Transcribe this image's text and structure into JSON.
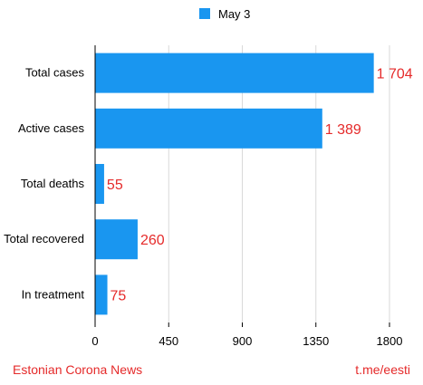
{
  "legend": {
    "label": "May 3"
  },
  "footer": {
    "left": "Estonian Corona News",
    "right": "t.me/eesti"
  },
  "colors": {
    "bar": "#1996f0",
    "value_label": "#e52a2a",
    "grid": "#d9d9d9",
    "axis": "#000000"
  },
  "chart_data": {
    "type": "bar",
    "orientation": "horizontal",
    "categories": [
      "Total cases",
      "Active cases",
      "Total deaths",
      "Total recovered",
      "In treatment"
    ],
    "series": [
      {
        "name": "May 3",
        "values": [
          1704,
          1389,
          55,
          260,
          75
        ],
        "labels": [
          "1 704",
          "1 389",
          "55",
          "260",
          "75"
        ]
      }
    ],
    "xlim": [
      0,
      1800
    ],
    "xticks": [
      0,
      450,
      900,
      1350,
      1800
    ],
    "xtick_labels": [
      "0",
      "450",
      "900",
      "1350",
      "1800"
    ],
    "grid": "vertical",
    "legend_position": "top-center",
    "title": "",
    "xlabel": "",
    "ylabel": ""
  }
}
